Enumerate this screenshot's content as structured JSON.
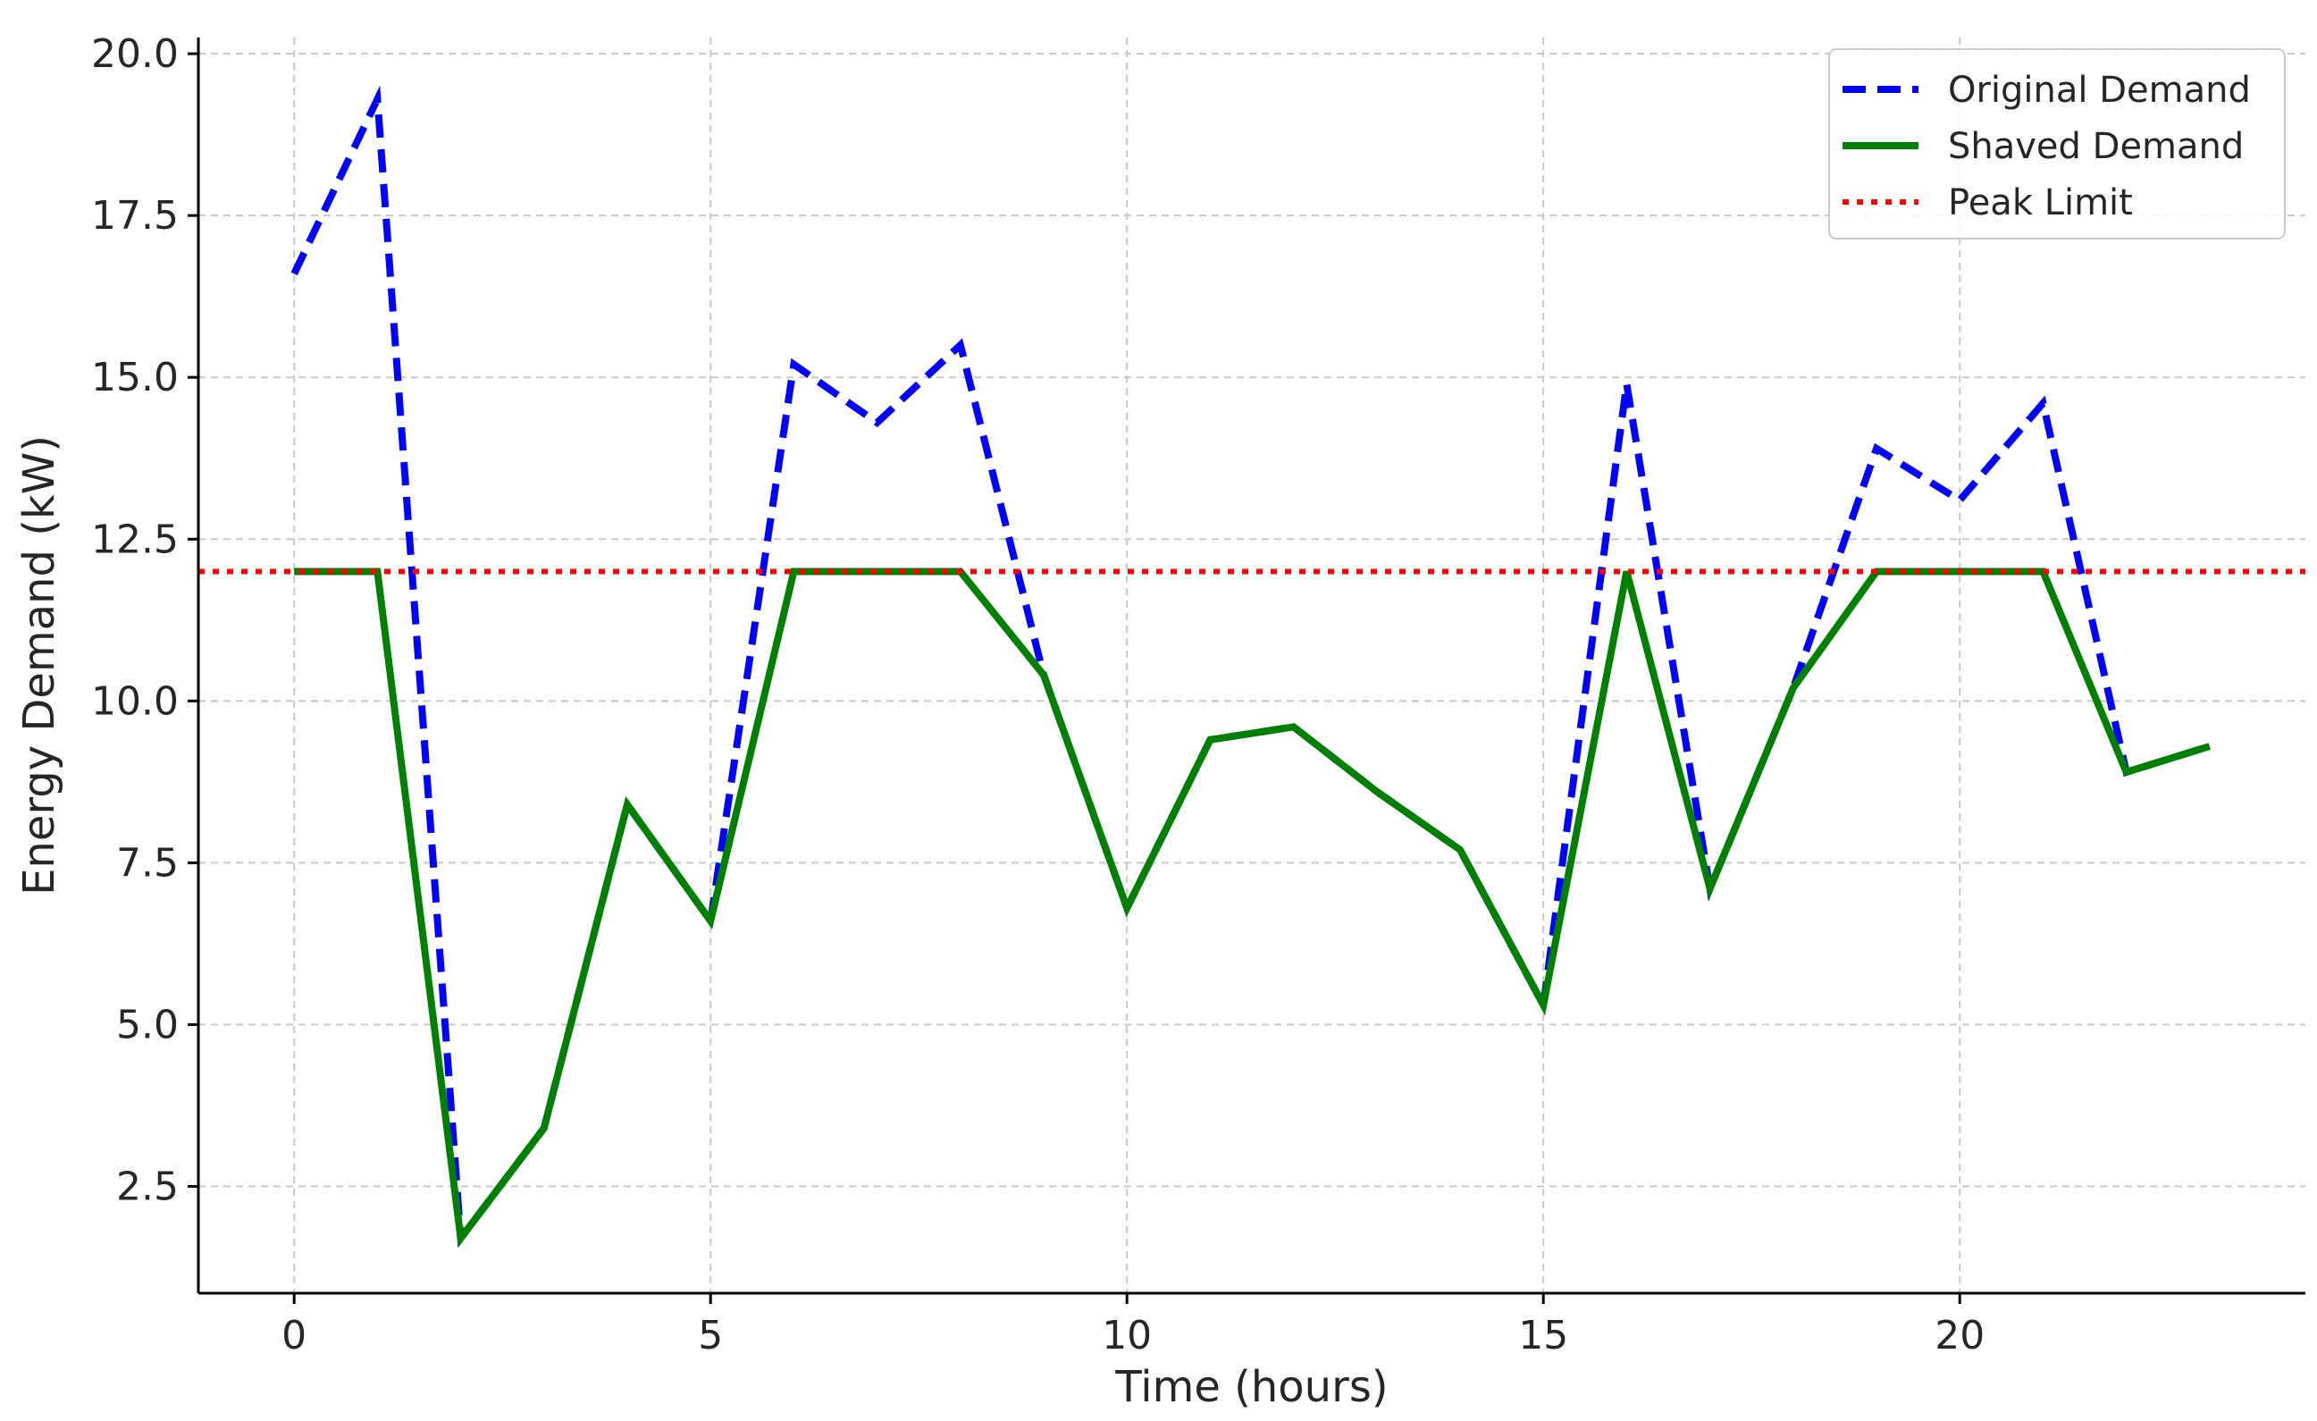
{
  "chart_data": {
    "type": "line",
    "title": "",
    "xlabel": "Time (hours)",
    "ylabel": "Energy Demand (kW)",
    "xlim": [
      -1.15,
      24.15
    ],
    "ylim": [
      0.85,
      20.25
    ],
    "xticks": [
      0,
      5,
      10,
      15,
      20
    ],
    "xtick_labels": [
      "0",
      "5",
      "10",
      "15",
      "20"
    ],
    "yticks": [
      2.5,
      5.0,
      7.5,
      10.0,
      12.5,
      15.0,
      17.5,
      20.0
    ],
    "ytick_labels": [
      "2.5",
      "5.0",
      "7.5",
      "10.0",
      "12.5",
      "15.0",
      "17.5",
      "20.0"
    ],
    "grid": true,
    "legend_position": "top-right",
    "x": [
      0,
      1,
      2,
      3,
      4,
      5,
      6,
      7,
      8,
      9,
      10,
      11,
      12,
      13,
      14,
      15,
      16,
      17,
      18,
      19,
      20,
      21,
      22,
      23
    ],
    "series": [
      {
        "name": "Original Demand",
        "style": "dashed",
        "color": "#0000ff",
        "values": [
          16.6,
          19.3,
          1.7,
          3.4,
          8.4,
          6.6,
          15.2,
          14.3,
          15.5,
          10.4,
          6.8,
          9.4,
          9.6,
          8.6,
          7.7,
          5.3,
          14.9,
          7.1,
          10.2,
          13.9,
          13.1,
          14.6,
          8.9,
          9.3
        ]
      },
      {
        "name": "Shaved Demand",
        "style": "solid",
        "color": "#008000",
        "values": [
          12,
          12,
          1.7,
          3.4,
          8.4,
          6.6,
          12,
          12,
          12,
          10.4,
          6.8,
          9.4,
          9.6,
          8.6,
          7.7,
          5.3,
          12,
          7.1,
          10.2,
          12,
          12,
          12,
          8.9,
          9.3
        ]
      },
      {
        "name": "Peak Limit",
        "style": "dotted",
        "color": "#ff0000",
        "value": 12
      }
    ]
  }
}
